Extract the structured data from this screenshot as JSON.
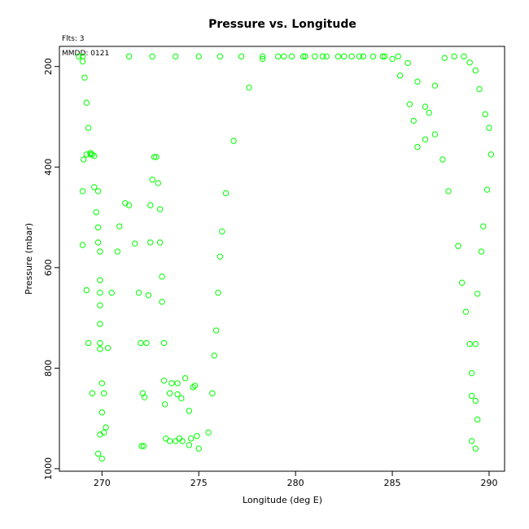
{
  "chart_data": {
    "type": "scatter",
    "title": "Pressure vs. Longitude",
    "xlabel": "Longitude (deg E)",
    "ylabel": "Pressure (mbar)",
    "flights_label": "Flts: 3",
    "date_label": "MMDD: 0121",
    "xlim": [
      267.8,
      290.8
    ],
    "ylim": [
      1005,
      160
    ],
    "y_inverted": true,
    "x_ticks": [
      270,
      275,
      280,
      285,
      290
    ],
    "y_ticks": [
      200,
      400,
      600,
      800,
      1000
    ],
    "grid": false,
    "legend": "none",
    "marker_color": "#00ff00",
    "marker": "open-circle",
    "points": [
      [
        268.8,
        180
      ],
      [
        269.0,
        180
      ],
      [
        269.0,
        190
      ],
      [
        269.1,
        222
      ],
      [
        269.2,
        272
      ],
      [
        269.3,
        322
      ],
      [
        269.2,
        375
      ],
      [
        269.4,
        375
      ],
      [
        269.5,
        375
      ],
      [
        269.6,
        378
      ],
      [
        269.4,
        372
      ],
      [
        269.05,
        385
      ],
      [
        269.0,
        448
      ],
      [
        269.6,
        440
      ],
      [
        269.8,
        448
      ],
      [
        269.7,
        490
      ],
      [
        269.8,
        520
      ],
      [
        269.0,
        555
      ],
      [
        269.8,
        550
      ],
      [
        269.9,
        568
      ],
      [
        269.9,
        625
      ],
      [
        269.2,
        645
      ],
      [
        269.9,
        650
      ],
      [
        269.9,
        675
      ],
      [
        269.9,
        712
      ],
      [
        269.3,
        750
      ],
      [
        269.9,
        750
      ],
      [
        269.9,
        762
      ],
      [
        270.3,
        760
      ],
      [
        269.5,
        850
      ],
      [
        270.0,
        830
      ],
      [
        270.1,
        850
      ],
      [
        270.0,
        888
      ],
      [
        270.2,
        918
      ],
      [
        270.1,
        928
      ],
      [
        269.9,
        932
      ],
      [
        269.8,
        970
      ],
      [
        270.0,
        980
      ],
      [
        271.2,
        472
      ],
      [
        271.4,
        476
      ],
      [
        270.9,
        518
      ],
      [
        270.8,
        568
      ],
      [
        271.7,
        552
      ],
      [
        270.5,
        650
      ],
      [
        271.9,
        650
      ],
      [
        272.0,
        750
      ],
      [
        272.3,
        750
      ],
      [
        272.1,
        850
      ],
      [
        272.2,
        858
      ],
      [
        272.15,
        955
      ],
      [
        272.05,
        955
      ],
      [
        271.4,
        180
      ],
      [
        272.6,
        180
      ],
      [
        273.8,
        180
      ],
      [
        275.0,
        180
      ],
      [
        276.1,
        180
      ],
      [
        277.2,
        180
      ],
      [
        278.3,
        180
      ],
      [
        278.3,
        185
      ],
      [
        279.1,
        180
      ],
      [
        279.4,
        180
      ],
      [
        279.8,
        180
      ],
      [
        280.4,
        180
      ],
      [
        280.5,
        180
      ],
      [
        281.0,
        180
      ],
      [
        281.4,
        180
      ],
      [
        281.6,
        180
      ],
      [
        282.2,
        180
      ],
      [
        282.5,
        180
      ],
      [
        282.9,
        180
      ],
      [
        283.3,
        180
      ],
      [
        283.5,
        180
      ],
      [
        284.0,
        180
      ],
      [
        284.5,
        180
      ],
      [
        284.6,
        180
      ],
      [
        285.3,
        180
      ],
      [
        277.6,
        242
      ],
      [
        272.7,
        380
      ],
      [
        272.8,
        380
      ],
      [
        272.6,
        425
      ],
      [
        272.9,
        432
      ],
      [
        272.5,
        476
      ],
      [
        273.0,
        484
      ],
      [
        272.5,
        550
      ],
      [
        273.0,
        550
      ],
      [
        273.1,
        618
      ],
      [
        272.4,
        655
      ],
      [
        273.1,
        668
      ],
      [
        273.2,
        750
      ],
      [
        273.2,
        825
      ],
      [
        273.5,
        850
      ],
      [
        273.6,
        830
      ],
      [
        273.9,
        830
      ],
      [
        273.25,
        872
      ],
      [
        273.9,
        852
      ],
      [
        274.1,
        860
      ],
      [
        273.3,
        940
      ],
      [
        273.5,
        945
      ],
      [
        273.8,
        945
      ],
      [
        274.0,
        940
      ],
      [
        274.15,
        945
      ],
      [
        274.3,
        820
      ],
      [
        274.5,
        885
      ],
      [
        274.7,
        838
      ],
      [
        274.8,
        835
      ],
      [
        274.5,
        953
      ],
      [
        274.6,
        940
      ],
      [
        274.9,
        935
      ],
      [
        275.0,
        960
      ],
      [
        275.5,
        928
      ],
      [
        275.7,
        850
      ],
      [
        276.8,
        348
      ],
      [
        276.4,
        452
      ],
      [
        276.2,
        528
      ],
      [
        276.1,
        578
      ],
      [
        276.0,
        650
      ],
      [
        275.9,
        725
      ],
      [
        275.8,
        775
      ],
      [
        285.0,
        185
      ],
      [
        285.8,
        193
      ],
      [
        285.4,
        218
      ],
      [
        286.3,
        230
      ],
      [
        285.9,
        275
      ],
      [
        286.1,
        308
      ],
      [
        286.7,
        280
      ],
      [
        286.9,
        292
      ],
      [
        287.2,
        238
      ],
      [
        287.2,
        335
      ],
      [
        286.7,
        345
      ],
      [
        286.3,
        360
      ],
      [
        287.6,
        385
      ],
      [
        287.7,
        183
      ],
      [
        288.2,
        180
      ],
      [
        288.7,
        180
      ],
      [
        289.0,
        192
      ],
      [
        289.3,
        208
      ],
      [
        289.5,
        245
      ],
      [
        289.8,
        295
      ],
      [
        290.0,
        322
      ],
      [
        290.1,
        375
      ],
      [
        289.9,
        445
      ],
      [
        287.9,
        448
      ],
      [
        288.4,
        557
      ],
      [
        289.7,
        518
      ],
      [
        289.6,
        568
      ],
      [
        288.6,
        630
      ],
      [
        289.4,
        652
      ],
      [
        288.8,
        688
      ],
      [
        289.0,
        752
      ],
      [
        289.3,
        752
      ],
      [
        289.1,
        810
      ],
      [
        289.1,
        855
      ],
      [
        289.3,
        865
      ],
      [
        289.4,
        902
      ],
      [
        289.1,
        945
      ],
      [
        289.3,
        960
      ]
    ]
  }
}
